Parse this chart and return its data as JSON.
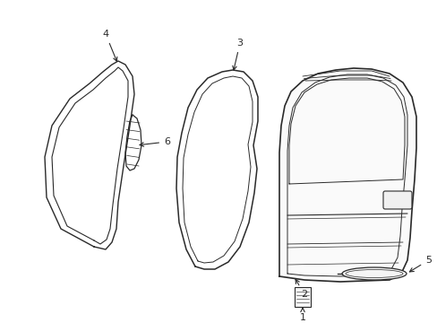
{
  "bg_color": "#ffffff",
  "line_color": "#2a2a2a",
  "lw": 1.0
}
